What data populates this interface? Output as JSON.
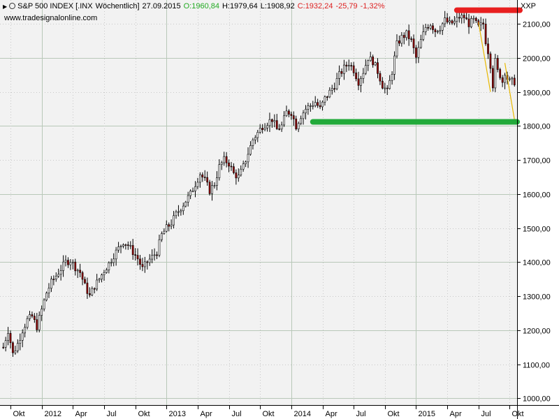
{
  "header": {
    "name": "S&P 500 INDEX [.INX",
    "interval": "Wöchentlich]",
    "date": "27.09.2015",
    "open": "O:1960,84",
    "high": "H:1979,64",
    "low": "L:1908,92",
    "close": "C:1932,24",
    "change": "-25,79",
    "change_pct": "-1,32%",
    "source": "www.tradesignalonline.com",
    "symbol": "XXP"
  },
  "colors": {
    "background": "#f2f2f2",
    "grid": "#d0d0d0",
    "candle_up": "#ffffff",
    "candle_down": "#990000",
    "resistance": "#e81f1f",
    "support": "#22aa3a",
    "trend": "#e8b800",
    "open_text": "#22aa22",
    "close_text": "#dd2222"
  },
  "chart_data": {
    "type": "candlestick",
    "title": "S&P 500 INDEX [.INX Wöchentlich]",
    "ylim": [
      980,
      2170
    ],
    "y_ticks": [
      "1000,00",
      "1100,00",
      "1200,00",
      "1300,00",
      "1400,00",
      "1500,00",
      "1600,00",
      "1700,00",
      "1800,00",
      "1900,00",
      "2000,00",
      "2100,00"
    ],
    "x_ticks": [
      {
        "label": "Okt",
        "week": 3
      },
      {
        "label": "2012",
        "week": 16
      },
      {
        "label": "Apr",
        "week": 29
      },
      {
        "label": "Jul",
        "week": 42
      },
      {
        "label": "Okt",
        "week": 55
      },
      {
        "label": "2013",
        "week": 68
      },
      {
        "label": "Apr",
        "week": 81
      },
      {
        "label": "Jul",
        "week": 94
      },
      {
        "label": "Okt",
        "week": 107
      },
      {
        "label": "2014",
        "week": 120
      },
      {
        "label": "Apr",
        "week": 133
      },
      {
        "label": "Jul",
        "week": 146
      },
      {
        "label": "Okt",
        "week": 159
      },
      {
        "label": "2015",
        "week": 172
      },
      {
        "label": "Apr",
        "week": 185
      },
      {
        "label": "Jul",
        "week": 198
      },
      {
        "label": "Okt",
        "week": 211
      }
    ],
    "anchors": [
      [
        0,
        1150
      ],
      [
        2,
        1200
      ],
      [
        4,
        1130
      ],
      [
        6,
        1160
      ],
      [
        8,
        1200
      ],
      [
        10,
        1230
      ],
      [
        12,
        1240
      ],
      [
        14,
        1210
      ],
      [
        16,
        1260
      ],
      [
        18,
        1310
      ],
      [
        20,
        1340
      ],
      [
        22,
        1360
      ],
      [
        24,
        1380
      ],
      [
        26,
        1400
      ],
      [
        28,
        1405
      ],
      [
        30,
        1385
      ],
      [
        32,
        1370
      ],
      [
        34,
        1330
      ],
      [
        36,
        1300
      ],
      [
        38,
        1330
      ],
      [
        40,
        1350
      ],
      [
        42,
        1375
      ],
      [
        44,
        1395
      ],
      [
        46,
        1420
      ],
      [
        48,
        1440
      ],
      [
        50,
        1460
      ],
      [
        52,
        1450
      ],
      [
        54,
        1430
      ],
      [
        56,
        1410
      ],
      [
        58,
        1380
      ],
      [
        60,
        1400
      ],
      [
        62,
        1415
      ],
      [
        64,
        1430
      ],
      [
        66,
        1480
      ],
      [
        68,
        1500
      ],
      [
        70,
        1515
      ],
      [
        72,
        1540
      ],
      [
        74,
        1560
      ],
      [
        76,
        1580
      ],
      [
        78,
        1600
      ],
      [
        80,
        1630
      ],
      [
        82,
        1660
      ],
      [
        84,
        1640
      ],
      [
        86,
        1610
      ],
      [
        88,
        1630
      ],
      [
        90,
        1680
      ],
      [
        92,
        1700
      ],
      [
        94,
        1690
      ],
      [
        96,
        1660
      ],
      [
        98,
        1650
      ],
      [
        100,
        1680
      ],
      [
        102,
        1720
      ],
      [
        104,
        1760
      ],
      [
        106,
        1780
      ],
      [
        108,
        1800
      ],
      [
        110,
        1810
      ],
      [
        112,
        1820
      ],
      [
        114,
        1790
      ],
      [
        116,
        1800
      ],
      [
        118,
        1840
      ],
      [
        120,
        1840
      ],
      [
        122,
        1800
      ],
      [
        124,
        1830
      ],
      [
        126,
        1850
      ],
      [
        128,
        1860
      ],
      [
        130,
        1870
      ],
      [
        132,
        1850
      ],
      [
        134,
        1880
      ],
      [
        136,
        1900
      ],
      [
        138,
        1920
      ],
      [
        140,
        1950
      ],
      [
        142,
        1970
      ],
      [
        144,
        1985
      ],
      [
        146,
        1965
      ],
      [
        148,
        1930
      ],
      [
        150,
        1960
      ],
      [
        152,
        2000
      ],
      [
        154,
        1990
      ],
      [
        156,
        1960
      ],
      [
        158,
        1920
      ],
      [
        160,
        1900
      ],
      [
        162,
        1960
      ],
      [
        164,
        2040
      ],
      [
        166,
        2060
      ],
      [
        168,
        2070
      ],
      [
        170,
        2050
      ],
      [
        172,
        2000
      ],
      [
        174,
        2050
      ],
      [
        176,
        2090
      ],
      [
        178,
        2100
      ],
      [
        180,
        2080
      ],
      [
        182,
        2090
      ],
      [
        184,
        2110
      ],
      [
        186,
        2100
      ],
      [
        188,
        2105
      ],
      [
        190,
        2120
      ],
      [
        192,
        2120
      ],
      [
        194,
        2100
      ],
      [
        196,
        2110
      ],
      [
        198,
        2090
      ],
      [
        200,
        2100
      ],
      [
        201,
        2050
      ],
      [
        202,
        2020
      ],
      [
        203,
        1980
      ],
      [
        204,
        1920
      ],
      [
        205,
        1990
      ],
      [
        206,
        1960
      ],
      [
        207,
        1950
      ],
      [
        208,
        1930
      ],
      [
        209,
        1960
      ],
      [
        210,
        1940
      ],
      [
        211,
        1930
      ]
    ],
    "annotations": {
      "resistance_level": 2140,
      "support_level": 1812,
      "support_start_week": 129,
      "resistance_start_week": 189,
      "trend_lines": [
        {
          "from_week": 198,
          "from_value": 2105,
          "to_week": 203,
          "to_value": 1900
        },
        {
          "from_week": 209,
          "from_value": 1985,
          "to_week": 213,
          "to_value": 1818
        }
      ]
    }
  }
}
